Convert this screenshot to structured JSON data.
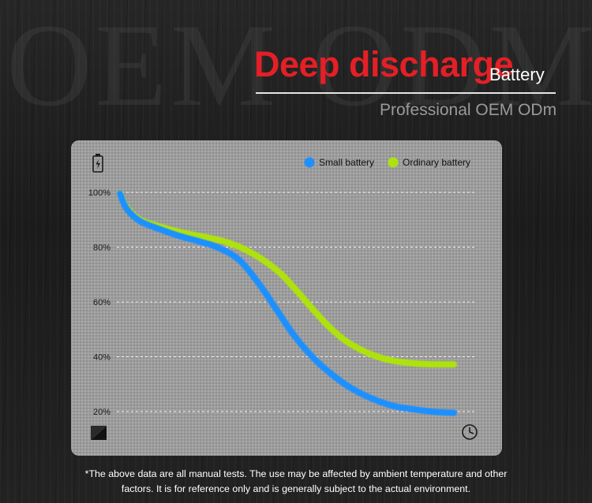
{
  "header": {
    "watermark": "OEM ODM",
    "title": "Deep discharge",
    "subtitle": "Battery",
    "tagline": "Professional OEM ODm"
  },
  "footer": {
    "line1": "*The above data are all manual tests. The use may be affected by ambient temperature and other",
    "line2": "factors. It is for reference only and is generally subject to the actual environment."
  },
  "icons": {
    "top_left": "battery-icon",
    "bottom_left": "diagonal-square-icon",
    "bottom_right": "clock-icon"
  },
  "chart_data": {
    "type": "line",
    "title": "",
    "xlabel": "",
    "ylabel": "",
    "ylim": [
      20,
      100
    ],
    "yticks": [
      "100%",
      "80%",
      "60%",
      "40%",
      "20%"
    ],
    "ytick_values": [
      100,
      80,
      60,
      40,
      20
    ],
    "grid": true,
    "legend_position": "top-right",
    "x_range": [
      0,
      1
    ],
    "series": [
      {
        "name": "Small battery",
        "color": "#1e90ff",
        "points": [
          [
            0.0,
            99.5
          ],
          [
            0.02,
            94
          ],
          [
            0.06,
            89.5
          ],
          [
            0.12,
            86.5
          ],
          [
            0.18,
            84
          ],
          [
            0.24,
            82
          ],
          [
            0.3,
            79.5
          ],
          [
            0.36,
            75
          ],
          [
            0.42,
            66
          ],
          [
            0.47,
            57
          ],
          [
            0.52,
            48
          ],
          [
            0.58,
            39.5
          ],
          [
            0.64,
            33
          ],
          [
            0.7,
            28
          ],
          [
            0.76,
            24.5
          ],
          [
            0.82,
            22
          ],
          [
            0.88,
            20.8
          ],
          [
            0.94,
            19.9
          ],
          [
            1.0,
            19.5
          ]
        ]
      },
      {
        "name": "Ordinary battery",
        "color": "#aee20e",
        "points": [
          [
            0.0,
            99.5
          ],
          [
            0.02,
            94.5
          ],
          [
            0.06,
            90
          ],
          [
            0.12,
            87.5
          ],
          [
            0.18,
            85.5
          ],
          [
            0.24,
            84
          ],
          [
            0.3,
            82.5
          ],
          [
            0.36,
            80
          ],
          [
            0.42,
            76
          ],
          [
            0.48,
            70.5
          ],
          [
            0.53,
            64
          ],
          [
            0.58,
            57
          ],
          [
            0.63,
            50.5
          ],
          [
            0.68,
            45.5
          ],
          [
            0.74,
            41.5
          ],
          [
            0.8,
            39
          ],
          [
            0.86,
            37.8
          ],
          [
            0.92,
            37.3
          ],
          [
            1.0,
            37.2
          ]
        ]
      }
    ]
  }
}
